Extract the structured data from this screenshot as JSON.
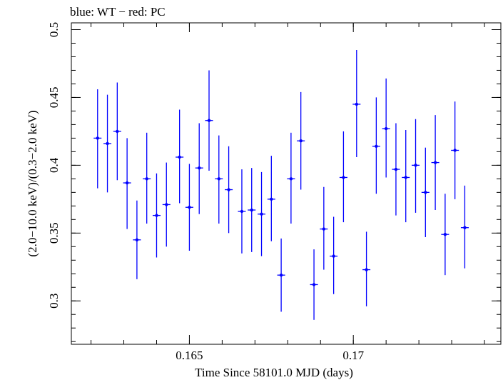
{
  "chart_data": {
    "type": "scatter",
    "title": "blue: WT − red: PC",
    "xlabel": "Time Since 58101.0 MJD (days)",
    "ylabel": "(2.0−10.0 keV)/(0.3−2.0 keV)",
    "xlim": [
      0.1614,
      0.1745
    ],
    "ylim": [
      0.268,
      0.505
    ],
    "x_ticks": [
      {
        "value": 0.165,
        "label": "0.165"
      },
      {
        "value": 0.17,
        "label": "0.17"
      }
    ],
    "y_ticks": [
      {
        "value": 0.3,
        "label": "0.3"
      },
      {
        "value": 0.35,
        "label": "0.35"
      },
      {
        "value": 0.4,
        "label": "0.4"
      },
      {
        "value": 0.45,
        "label": "0.45"
      },
      {
        "value": 0.5,
        "label": "0.5"
      }
    ],
    "x_minor_step": 0.001,
    "y_minor_step": 0.01,
    "grid": false,
    "series": [
      {
        "color": "#0000ff",
        "x_error": 0.00012,
        "points": [
          {
            "x": 0.1622,
            "y": 0.42,
            "y_low": 0.383,
            "y_high": 0.456
          },
          {
            "x": 0.1625,
            "y": 0.416,
            "y_low": 0.38,
            "y_high": 0.452
          },
          {
            "x": 0.1628,
            "y": 0.425,
            "y_low": 0.389,
            "y_high": 0.461
          },
          {
            "x": 0.1631,
            "y": 0.387,
            "y_low": 0.353,
            "y_high": 0.42
          },
          {
            "x": 0.1634,
            "y": 0.345,
            "y_low": 0.316,
            "y_high": 0.374
          },
          {
            "x": 0.1637,
            "y": 0.39,
            "y_low": 0.357,
            "y_high": 0.424
          },
          {
            "x": 0.164,
            "y": 0.363,
            "y_low": 0.332,
            "y_high": 0.394
          },
          {
            "x": 0.1643,
            "y": 0.371,
            "y_low": 0.34,
            "y_high": 0.402
          },
          {
            "x": 0.1647,
            "y": 0.406,
            "y_low": 0.372,
            "y_high": 0.441
          },
          {
            "x": 0.165,
            "y": 0.369,
            "y_low": 0.337,
            "y_high": 0.401
          },
          {
            "x": 0.1653,
            "y": 0.398,
            "y_low": 0.364,
            "y_high": 0.431
          },
          {
            "x": 0.1656,
            "y": 0.433,
            "y_low": 0.396,
            "y_high": 0.47
          },
          {
            "x": 0.1659,
            "y": 0.39,
            "y_low": 0.357,
            "y_high": 0.422
          },
          {
            "x": 0.1662,
            "y": 0.382,
            "y_low": 0.35,
            "y_high": 0.414
          },
          {
            "x": 0.1666,
            "y": 0.366,
            "y_low": 0.335,
            "y_high": 0.397
          },
          {
            "x": 0.1669,
            "y": 0.367,
            "y_low": 0.336,
            "y_high": 0.398
          },
          {
            "x": 0.1672,
            "y": 0.364,
            "y_low": 0.333,
            "y_high": 0.395
          },
          {
            "x": 0.1675,
            "y": 0.375,
            "y_low": 0.344,
            "y_high": 0.407
          },
          {
            "x": 0.1678,
            "y": 0.319,
            "y_low": 0.292,
            "y_high": 0.346
          },
          {
            "x": 0.1681,
            "y": 0.39,
            "y_low": 0.357,
            "y_high": 0.424
          },
          {
            "x": 0.1684,
            "y": 0.418,
            "y_low": 0.382,
            "y_high": 0.454
          },
          {
            "x": 0.1688,
            "y": 0.312,
            "y_low": 0.286,
            "y_high": 0.338
          },
          {
            "x": 0.1691,
            "y": 0.353,
            "y_low": 0.323,
            "y_high": 0.384
          },
          {
            "x": 0.1694,
            "y": 0.333,
            "y_low": 0.305,
            "y_high": 0.362
          },
          {
            "x": 0.1697,
            "y": 0.391,
            "y_low": 0.358,
            "y_high": 0.425
          },
          {
            "x": 0.1701,
            "y": 0.445,
            "y_low": 0.406,
            "y_high": 0.485
          },
          {
            "x": 0.1704,
            "y": 0.323,
            "y_low": 0.296,
            "y_high": 0.351
          },
          {
            "x": 0.1707,
            "y": 0.414,
            "y_low": 0.379,
            "y_high": 0.45
          },
          {
            "x": 0.171,
            "y": 0.427,
            "y_low": 0.391,
            "y_high": 0.464
          },
          {
            "x": 0.1713,
            "y": 0.397,
            "y_low": 0.363,
            "y_high": 0.431
          },
          {
            "x": 0.1716,
            "y": 0.391,
            "y_low": 0.358,
            "y_high": 0.426
          },
          {
            "x": 0.1719,
            "y": 0.4,
            "y_low": 0.365,
            "y_high": 0.434
          },
          {
            "x": 0.1722,
            "y": 0.38,
            "y_low": 0.347,
            "y_high": 0.413
          },
          {
            "x": 0.1725,
            "y": 0.402,
            "y_low": 0.367,
            "y_high": 0.437
          },
          {
            "x": 0.1728,
            "y": 0.349,
            "y_low": 0.319,
            "y_high": 0.379
          },
          {
            "x": 0.1731,
            "y": 0.411,
            "y_low": 0.375,
            "y_high": 0.447
          },
          {
            "x": 0.1734,
            "y": 0.354,
            "y_low": 0.324,
            "y_high": 0.385
          }
        ]
      }
    ]
  }
}
